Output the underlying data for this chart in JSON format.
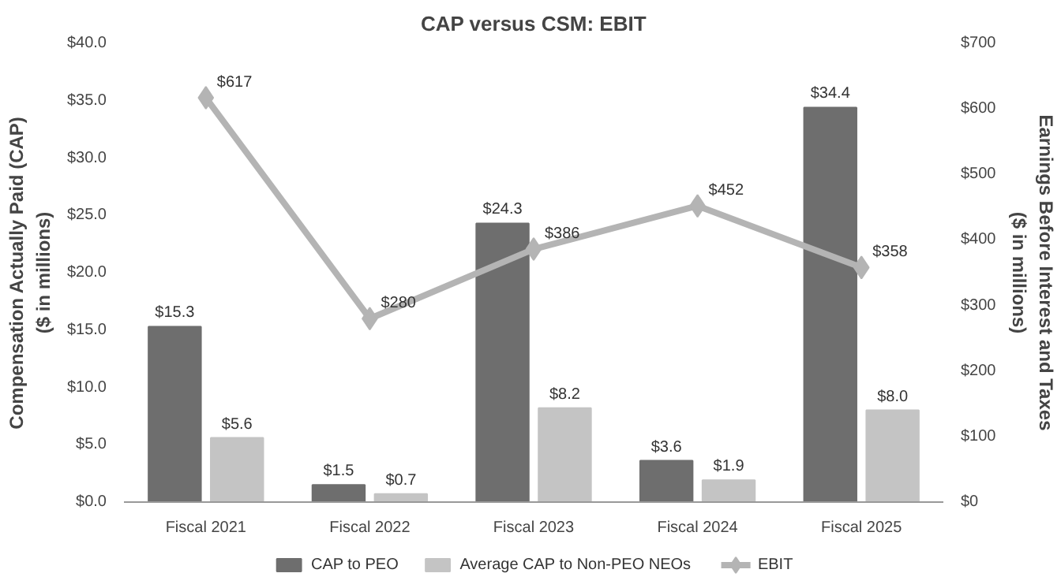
{
  "chart_data": {
    "type": "bar",
    "title": "CAP versus CSM: EBIT",
    "ylabel": "Compensation Actually Paid (CAP)\n($ in millions)",
    "y2label": "Earnings Before Interest and Taxes\n($ in millions)",
    "categories": [
      "Fiscal 2021",
      "Fiscal 2022",
      "Fiscal 2023",
      "Fiscal 2024",
      "Fiscal 2025"
    ],
    "series": [
      {
        "name": "CAP to PEO",
        "color": "#6e6e6e",
        "values": [
          15.3,
          1.5,
          24.3,
          3.6,
          34.4
        ],
        "value_labels": [
          "$15.3",
          "$1.5",
          "$24.3",
          "$3.6",
          "$34.4"
        ]
      },
      {
        "name": "Average CAP to Non-PEO NEOs",
        "color": "#c4c4c4",
        "values": [
          5.6,
          0.7,
          8.2,
          1.9,
          8.0
        ],
        "value_labels": [
          "$5.6",
          "$0.7",
          "$8.2",
          "$1.9",
          "$8.0"
        ]
      },
      {
        "name": "EBIT",
        "type": "line",
        "axis": "y2",
        "color": "#b4b4b4",
        "marker": "diamond",
        "values": [
          617,
          280,
          386,
          452,
          358
        ],
        "value_labels": [
          "$617",
          "$280",
          "$386",
          "$452",
          "$358"
        ]
      }
    ],
    "ylim": [
      0,
      40
    ],
    "yticks": [
      {
        "value": 0,
        "label": "$0.0"
      },
      {
        "value": 5,
        "label": "$5.0"
      },
      {
        "value": 10,
        "label": "$10.0"
      },
      {
        "value": 15,
        "label": "$15.0"
      },
      {
        "value": 20,
        "label": "$20.0"
      },
      {
        "value": 25,
        "label": "$25.0"
      },
      {
        "value": 30,
        "label": "$30.0"
      },
      {
        "value": 35,
        "label": "$35.0"
      },
      {
        "value": 40,
        "label": "$40.0"
      }
    ],
    "y2lim": [
      0,
      700
    ],
    "y2ticks": [
      {
        "value": 0,
        "label": "$0"
      },
      {
        "value": 100,
        "label": "$100"
      },
      {
        "value": 200,
        "label": "$200"
      },
      {
        "value": 300,
        "label": "$300"
      },
      {
        "value": 400,
        "label": "$400"
      },
      {
        "value": 500,
        "label": "$500"
      },
      {
        "value": 600,
        "label": "$600"
      },
      {
        "value": 700,
        "label": "$700"
      }
    ],
    "legend": "bottom",
    "grid": false
  }
}
